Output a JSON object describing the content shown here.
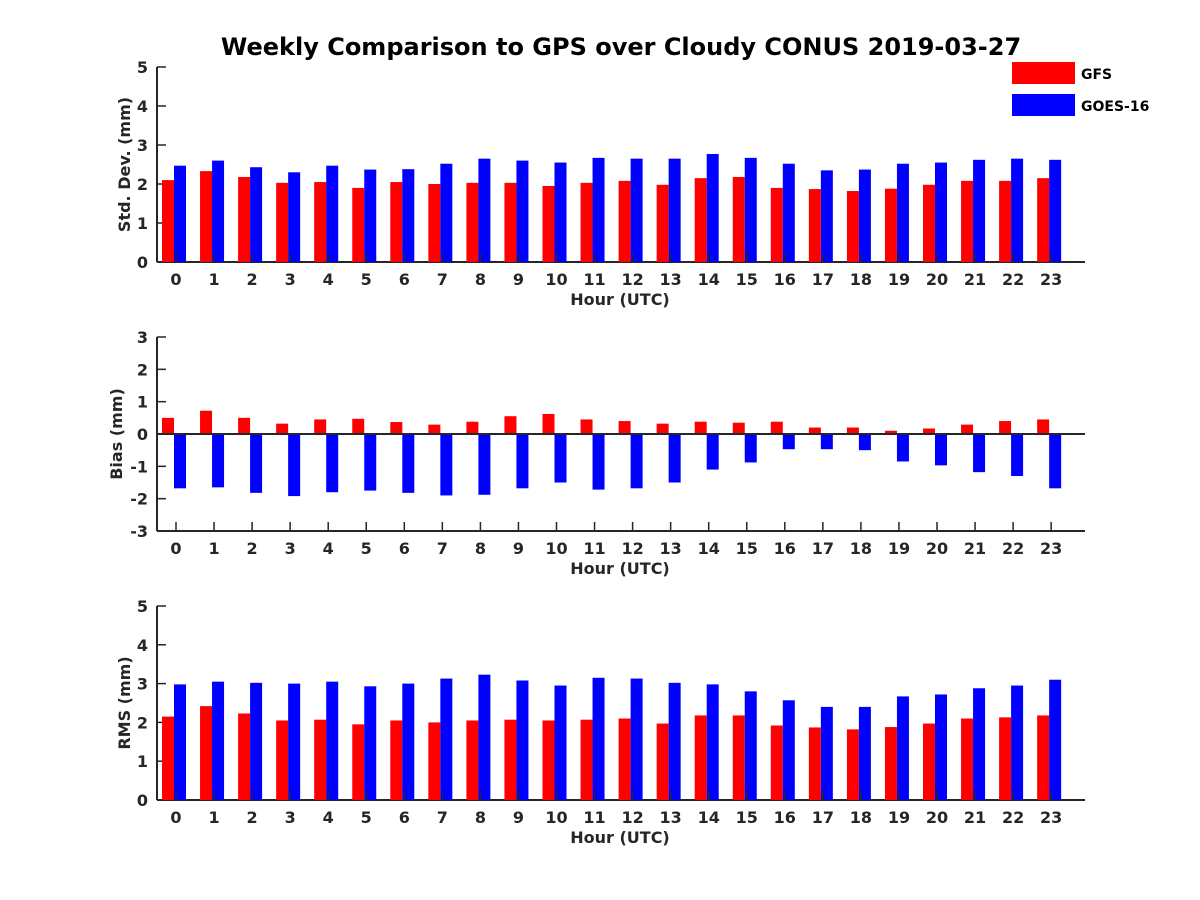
{
  "title": "Weekly Comparison to GPS over Cloudy CONUS 2019-03-27",
  "legend": {
    "placement": "top-right",
    "items": [
      {
        "label": "GFS",
        "color": "#ff0000"
      },
      {
        "label": "GOES-16",
        "color": "#0000ff"
      }
    ]
  },
  "chart_data": [
    {
      "type": "bar",
      "xlabel": "Hour (UTC)",
      "ylabel": "Std. Dev. (mm)",
      "ylim": [
        0,
        5
      ],
      "yticks": [
        "0",
        "1",
        "2",
        "3",
        "4",
        "5"
      ],
      "categories": [
        "0",
        "1",
        "2",
        "3",
        "4",
        "5",
        "6",
        "7",
        "8",
        "9",
        "10",
        "11",
        "12",
        "13",
        "14",
        "15",
        "16",
        "17",
        "18",
        "19",
        "20",
        "21",
        "22",
        "23"
      ],
      "series": [
        {
          "name": "GFS",
          "color": "#ff0000",
          "values": [
            2.1,
            2.33,
            2.18,
            2.03,
            2.05,
            1.9,
            2.05,
            2.0,
            2.03,
            2.03,
            1.95,
            2.03,
            2.08,
            1.98,
            2.15,
            2.18,
            1.9,
            1.87,
            1.82,
            1.88,
            1.98,
            2.08,
            2.08,
            2.15
          ]
        },
        {
          "name": "GOES-16",
          "color": "#0000ff",
          "values": [
            2.47,
            2.6,
            2.43,
            2.3,
            2.47,
            2.37,
            2.38,
            2.52,
            2.65,
            2.6,
            2.55,
            2.67,
            2.65,
            2.65,
            2.77,
            2.67,
            2.52,
            2.35,
            2.37,
            2.52,
            2.55,
            2.62,
            2.65,
            2.62
          ]
        }
      ]
    },
    {
      "type": "bar",
      "xlabel": "Hour (UTC)",
      "ylabel": "Bias (mm)",
      "ylim": [
        -3,
        3
      ],
      "yticks": [
        "-3",
        "-2",
        "-1",
        "0",
        "1",
        "2",
        "3"
      ],
      "zero_line": true,
      "categories": [
        "0",
        "1",
        "2",
        "3",
        "4",
        "5",
        "6",
        "7",
        "8",
        "9",
        "10",
        "11",
        "12",
        "13",
        "14",
        "15",
        "16",
        "17",
        "18",
        "19",
        "20",
        "21",
        "22",
        "23"
      ],
      "series": [
        {
          "name": "GFS",
          "color": "#ff0000",
          "values": [
            0.5,
            0.72,
            0.5,
            0.32,
            0.45,
            0.47,
            0.37,
            0.29,
            0.38,
            0.55,
            0.62,
            0.45,
            0.4,
            0.32,
            0.38,
            0.35,
            0.38,
            0.2,
            0.2,
            0.1,
            0.17,
            0.29,
            0.4,
            0.45
          ]
        },
        {
          "name": "GOES-16",
          "color": "#0000ff",
          "values": [
            -1.68,
            -1.65,
            -1.82,
            -1.92,
            -1.8,
            -1.75,
            -1.82,
            -1.9,
            -1.88,
            -1.68,
            -1.5,
            -1.72,
            -1.68,
            -1.5,
            -1.1,
            -0.88,
            -0.47,
            -0.47,
            -0.5,
            -0.85,
            -0.97,
            -1.18,
            -1.3,
            -1.68
          ]
        }
      ]
    },
    {
      "type": "bar",
      "xlabel": "Hour (UTC)",
      "ylabel": "RMS (mm)",
      "ylim": [
        0,
        5
      ],
      "yticks": [
        "0",
        "1",
        "2",
        "3",
        "4",
        "5"
      ],
      "categories": [
        "0",
        "1",
        "2",
        "3",
        "4",
        "5",
        "6",
        "7",
        "8",
        "9",
        "10",
        "11",
        "12",
        "13",
        "14",
        "15",
        "16",
        "17",
        "18",
        "19",
        "20",
        "21",
        "22",
        "23"
      ],
      "series": [
        {
          "name": "GFS",
          "color": "#ff0000",
          "values": [
            2.15,
            2.42,
            2.23,
            2.05,
            2.07,
            1.95,
            2.05,
            2.0,
            2.05,
            2.07,
            2.05,
            2.07,
            2.1,
            1.97,
            2.18,
            2.18,
            1.92,
            1.87,
            1.82,
            1.88,
            1.97,
            2.1,
            2.13,
            2.18
          ]
        },
        {
          "name": "GOES-16",
          "color": "#0000ff",
          "values": [
            2.98,
            3.05,
            3.02,
            3.0,
            3.05,
            2.93,
            3.0,
            3.13,
            3.23,
            3.08,
            2.95,
            3.15,
            3.13,
            3.02,
            2.98,
            2.8,
            2.57,
            2.4,
            2.4,
            2.67,
            2.72,
            2.88,
            2.95,
            3.1
          ]
        }
      ]
    }
  ]
}
